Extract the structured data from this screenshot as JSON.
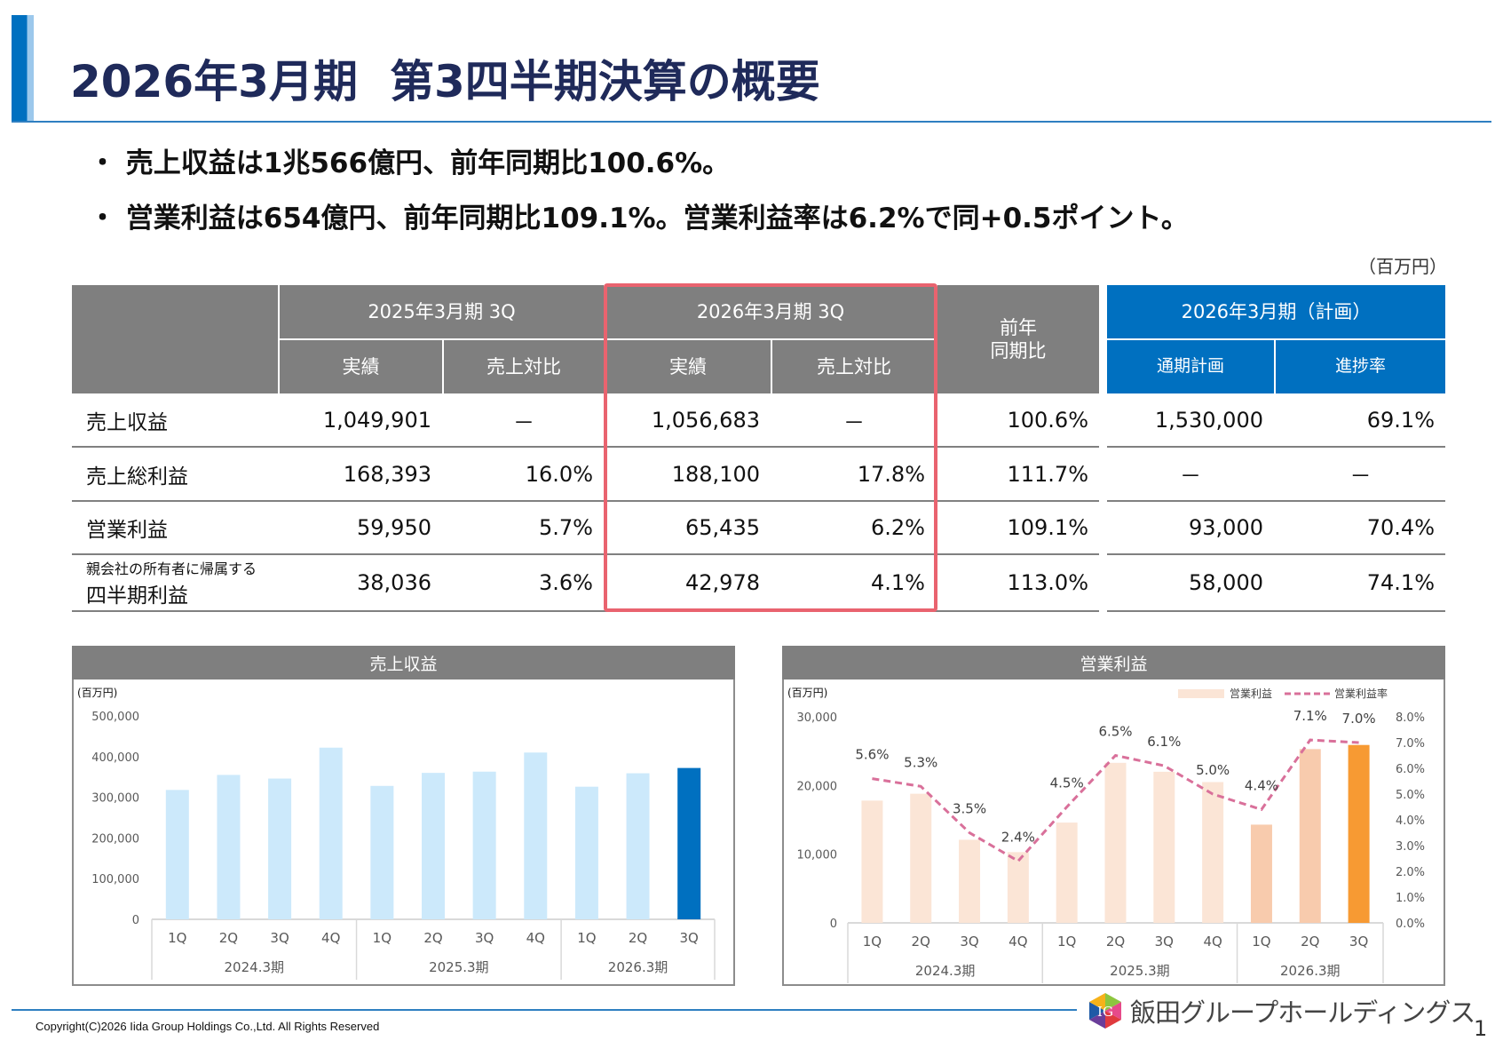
{
  "header": {
    "title_part1": "2026年3月期",
    "title_part2": "第3四半期決算の概要"
  },
  "bullets": [
    "・ 売上収益は1兆566億円、前年同期比100.6%。",
    "・ 営業利益は654億円、前年同期比109.1%。営業利益率は6.2%で同+0.5ポイント。"
  ],
  "table": {
    "unit": "（百万円）",
    "group_prev": "2025年3月期 3Q",
    "group_curr": "2026年3月期 3Q",
    "yoy": "前年\n同期比",
    "group_plan": "2026年3月期（計画）",
    "sub_actual": "実績",
    "sub_ratio": "売上対比",
    "sub_plan": "通期計画",
    "sub_progress": "進捗率",
    "rows": [
      {
        "label": "売上収益",
        "label_small": "",
        "prev": "1,049,901",
        "prev_ratio": "－",
        "curr": "1,056,683",
        "curr_ratio": "－",
        "yoy": "100.6%",
        "plan": "1,530,000",
        "progress": "69.1%"
      },
      {
        "label": "売上総利益",
        "label_small": "",
        "prev": "168,393",
        "prev_ratio": "16.0%",
        "curr": "188,100",
        "curr_ratio": "17.8%",
        "yoy": "111.7%",
        "plan": "－",
        "progress": "－"
      },
      {
        "label": "営業利益",
        "label_small": "",
        "prev": "59,950",
        "prev_ratio": "5.7%",
        "curr": "65,435",
        "curr_ratio": "6.2%",
        "yoy": "109.1%",
        "plan": "93,000",
        "progress": "70.4%"
      },
      {
        "label": "四半期利益",
        "label_small": "親会社の所有者に帰属する",
        "prev": "38,036",
        "prev_ratio": "3.6%",
        "curr": "42,978",
        "curr_ratio": "4.1%",
        "yoy": "113.0%",
        "plan": "58,000",
        "progress": "74.1%"
      }
    ]
  },
  "chart_data": [
    {
      "type": "bar",
      "title": "売上収益",
      "ylabel": "(百万円)",
      "ylim": [
        0,
        500000
      ],
      "yticks": [
        "500,000",
        "400,000",
        "300,000",
        "200,000",
        "100,000",
        "0"
      ],
      "categories": [
        "1Q",
        "2Q",
        "3Q",
        "4Q",
        "1Q",
        "2Q",
        "3Q",
        "4Q",
        "1Q",
        "2Q",
        "3Q"
      ],
      "groups": [
        "2024.3期",
        "2025.3期",
        "2026.3期"
      ],
      "values": [
        318000,
        355000,
        346000,
        422000,
        328000,
        360000,
        363000,
        410000,
        326000,
        359000,
        372000
      ],
      "colors": {
        "bar": "#cce9fb",
        "highlight": "#0070c0"
      }
    },
    {
      "type": "bar+line",
      "title": "営業利益",
      "ylabel": "(百万円)",
      "ylim": [
        0,
        30000
      ],
      "y2lim": [
        0,
        8
      ],
      "yticks": [
        "30,000",
        "20,000",
        "10,000",
        "0"
      ],
      "y2ticks": [
        "8.0%",
        "7.0%",
        "6.0%",
        "5.0%",
        "4.0%",
        "3.0%",
        "2.0%",
        "1.0%",
        "0.0%"
      ],
      "legend": [
        "営業利益",
        "営業利益率"
      ],
      "legend_position": "top-right",
      "categories": [
        "1Q",
        "2Q",
        "3Q",
        "4Q",
        "1Q",
        "2Q",
        "3Q",
        "4Q",
        "1Q",
        "2Q",
        "3Q"
      ],
      "groups": [
        "2024.3期",
        "2025.3期",
        "2026.3期"
      ],
      "series": [
        {
          "name": "営業利益",
          "values": [
            17800,
            18800,
            12100,
            10300,
            14600,
            23300,
            22000,
            20500,
            14300,
            25300,
            25900
          ]
        },
        {
          "name": "営業利益率",
          "values": [
            5.6,
            5.3,
            3.5,
            2.4,
            4.5,
            6.5,
            6.1,
            5.0,
            4.4,
            7.1,
            7.0
          ],
          "labels": [
            "5.6%",
            "5.3%",
            "3.5%",
            "2.4%",
            "4.5%",
            "6.5%",
            "6.1%",
            "5.0%",
            "4.4%",
            "7.1%",
            "7.0%"
          ]
        }
      ],
      "colors": {
        "bar": "#fbe5d6",
        "bar_current": "#f8cbad",
        "highlight": "#f79a33",
        "line": "#d9709a"
      }
    }
  ],
  "footer": {
    "copyright": "Copyright(C)2026 Iida Group Holdings Co.,Ltd. All Rights Reserved",
    "logo_text": "飯田グループホールディングス",
    "logo_mark": "IG",
    "page": "1"
  }
}
